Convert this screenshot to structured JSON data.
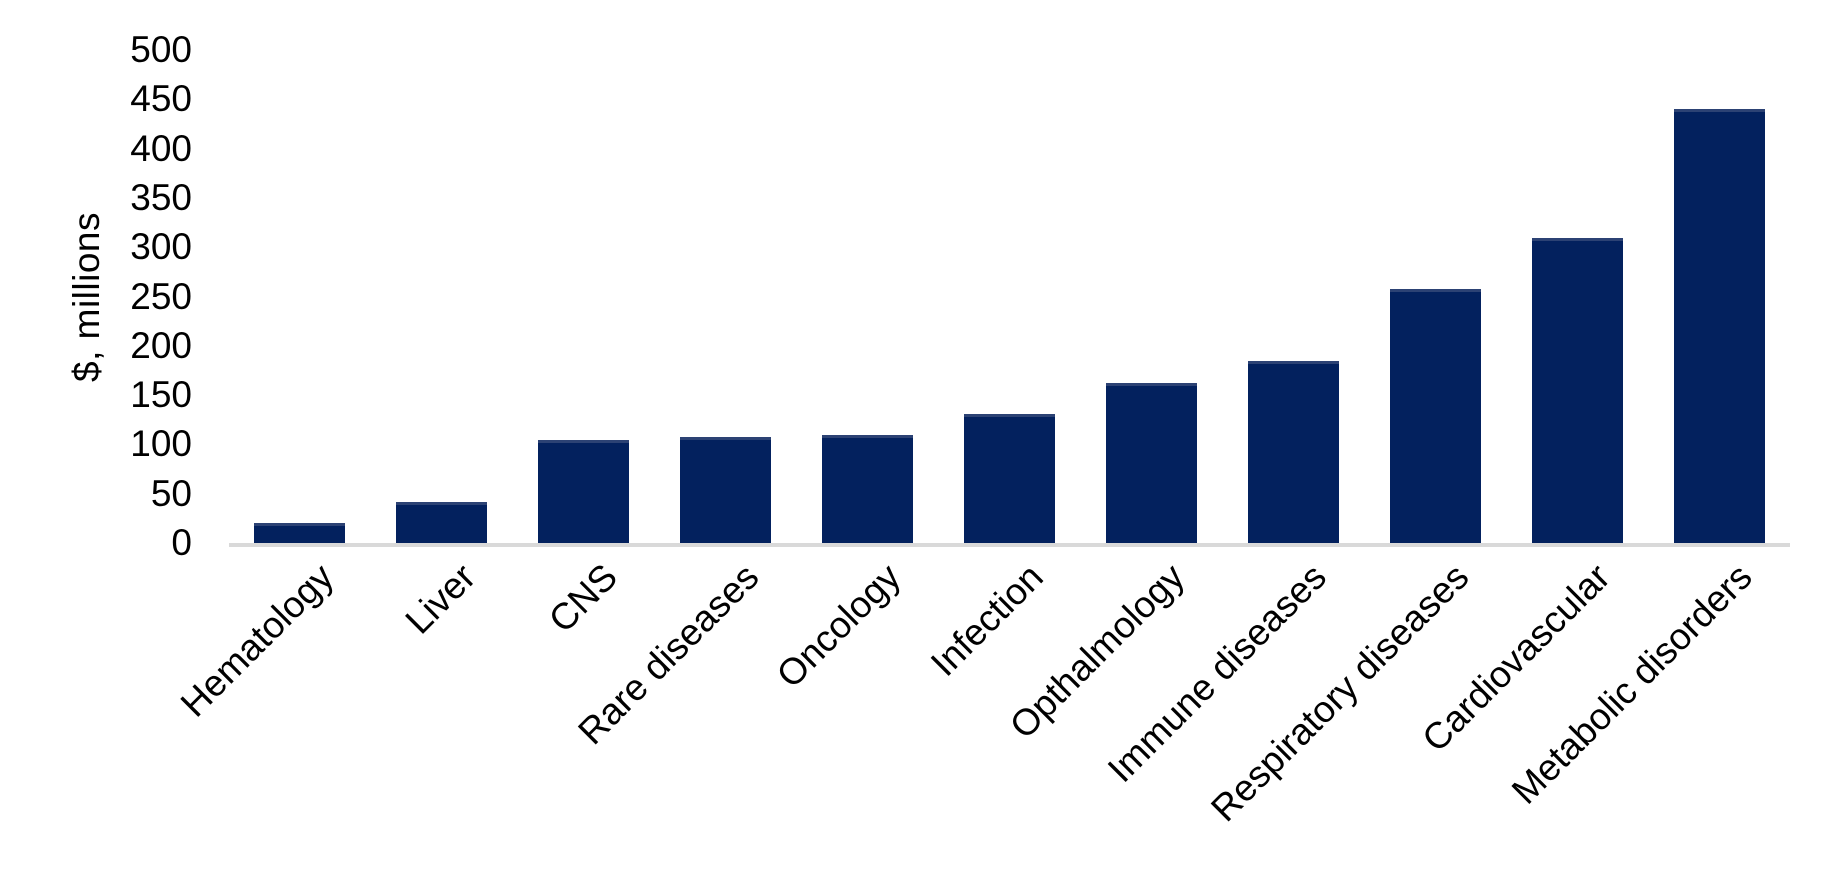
{
  "chart_data": {
    "type": "bar",
    "title": "",
    "xlabel": "",
    "ylabel": "$, millions",
    "categories": [
      "Hematology",
      "Liver",
      "CNS",
      "Rare diseases",
      "Oncology",
      "Infection",
      "Opthalmology",
      "Immune diseases",
      "Respiratory diseases",
      "Cardiovascular",
      "Metabolic disorders"
    ],
    "values": [
      20,
      42,
      104,
      108,
      110,
      131,
      162,
      185,
      258,
      309,
      440
    ],
    "ylim": [
      0,
      500
    ],
    "yticks": [
      0,
      50,
      100,
      150,
      200,
      250,
      300,
      350,
      400,
      450,
      500
    ],
    "grid": false,
    "legend": false,
    "colors": {
      "bar_fill": "#03215E",
      "bar_edge": "#2c4274",
      "axis_line": "#D9D9D9",
      "text": "#000000"
    }
  }
}
